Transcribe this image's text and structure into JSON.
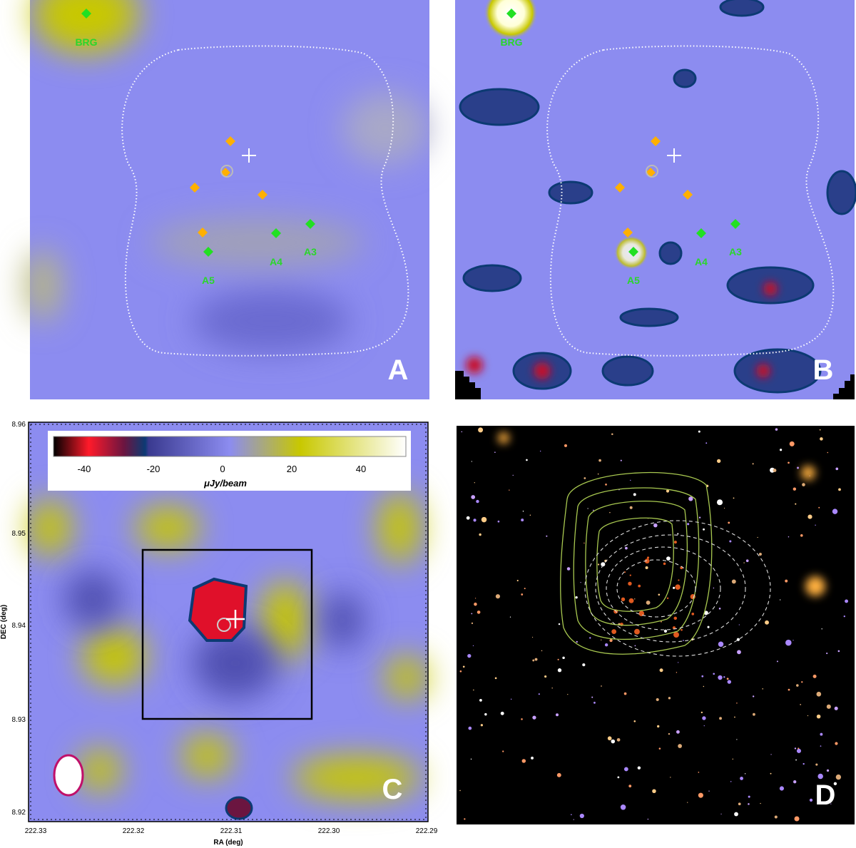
{
  "panels": [
    {
      "label": "A",
      "sources": [
        "BRG",
        "A5",
        "A4",
        "A3"
      ]
    },
    {
      "label": "B",
      "sources": [
        "BRG",
        "A5",
        "A4",
        "A3"
      ]
    },
    {
      "label": "C",
      "colorbar": {
        "ticks": [
          "-40",
          "-20",
          "0",
          "20",
          "40"
        ],
        "unit": "μJy/beam"
      },
      "x_axis": {
        "label": "RA (deg)",
        "ticks": [
          "222.33",
          "222.32",
          "222.31",
          "222.30",
          "222.29"
        ]
      },
      "y_axis": {
        "label": "DEC (deg)",
        "ticks": [
          "8.96",
          "8.95",
          "8.94",
          "8.93",
          "8.92"
        ]
      }
    },
    {
      "label": "D"
    }
  ]
}
